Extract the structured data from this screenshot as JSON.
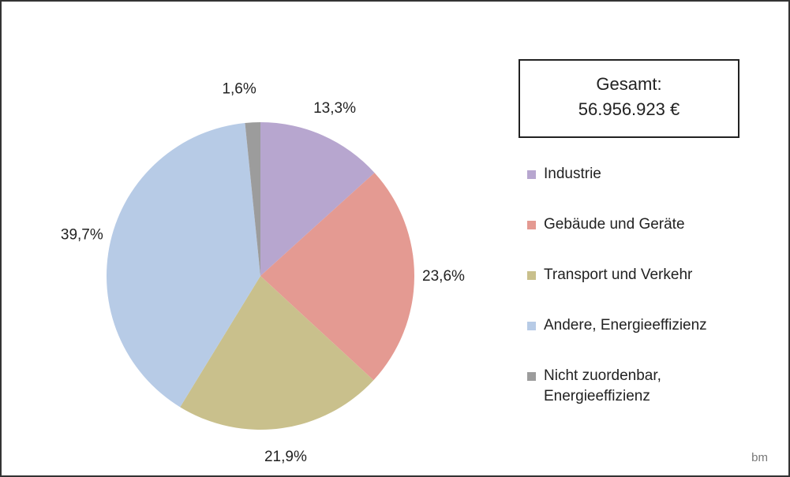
{
  "chart_data": {
    "type": "pie",
    "categories": [
      "Industrie",
      "Gebäude und Geräte",
      "Transport und Verkehr",
      "Andere, Energieeffizienz",
      "Nicht zuordenbar, Energieeffizienz"
    ],
    "values": [
      13.3,
      23.6,
      21.9,
      39.7,
      1.6
    ],
    "value_labels": [
      "13,3%",
      "23,6%",
      "21,9%",
      "39,7%",
      "1,6%"
    ],
    "colors": [
      "#b7a6cf",
      "#e49a92",
      "#c9c08c",
      "#b7cbe6",
      "#9c9c9c"
    ],
    "total_label": "Gesamt:",
    "total_value": "56.956.923 €",
    "logo": "bm"
  }
}
